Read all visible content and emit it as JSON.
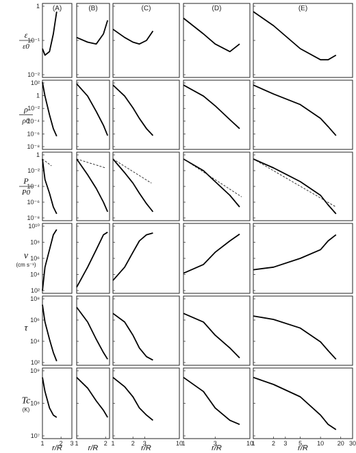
{
  "chart_data": {
    "type": "line",
    "columns": [
      "(A)",
      "(B)",
      "(C)",
      "(D)",
      "(E)"
    ],
    "x_axes": [
      {
        "ticks": [
          1,
          2,
          3
        ],
        "xlabel": "r/R"
      },
      {
        "ticks": [
          1,
          2
        ],
        "xlabel": "r/R"
      },
      {
        "ticks": [
          1,
          2,
          3,
          10
        ],
        "xlabel": "r/R"
      },
      {
        "ticks": [
          1,
          3,
          10
        ],
        "xlabel": "r/R"
      },
      {
        "ticks": [
          1,
          2,
          3,
          5,
          10,
          20,
          30
        ],
        "xlabel": "r/R"
      }
    ],
    "rows": [
      {
        "label": "ε / ε0",
        "label_top": "ε",
        "label_bottom": "ε0",
        "unit": "",
        "scale": "log",
        "ylim": [
          0.01,
          1
        ],
        "ytick_labels": [
          "1",
          "10⁻¹",
          "10⁻²"
        ],
        "series": [
          {
            "x": [
              1.0,
              1.1,
              1.3,
              1.5,
              1.7
            ],
            "y": [
              0.06,
              0.04,
              0.05,
              0.15,
              0.6
            ]
          },
          {
            "x": [
              1.0,
              1.3,
              1.6,
              1.9,
              2.1
            ],
            "y": [
              0.12,
              0.09,
              0.08,
              0.15,
              0.35
            ]
          },
          {
            "x": [
              1.0,
              1.5,
              2.0,
              2.5,
              3.2,
              4.0
            ],
            "y": [
              0.2,
              0.12,
              0.09,
              0.08,
              0.1,
              0.18
            ]
          },
          {
            "x": [
              1.0,
              2.0,
              3.0,
              5.0,
              7.0
            ],
            "y": [
              0.4,
              0.15,
              0.08,
              0.05,
              0.08
            ]
          },
          {
            "x": [
              1.0,
              2.0,
              5.0,
              10.0,
              13.0,
              17.0
            ],
            "y": [
              0.6,
              0.25,
              0.06,
              0.03,
              0.03,
              0.04
            ]
          }
        ]
      },
      {
        "label": "ρ / ρ0",
        "label_top": "ρ",
        "label_bottom": "ρ0",
        "unit": "",
        "scale": "log",
        "ylim": [
          1e-08,
          100
        ],
        "ytick_labels": [
          "10²",
          "1",
          "10⁻²",
          "10⁻⁴",
          "10⁻⁶",
          "10⁻⁸"
        ],
        "series": [
          {
            "x": [
              1.0,
              1.1,
              1.3,
              1.5,
              1.7
            ],
            "y": [
              50,
              0.5,
              0.001,
              1e-05,
              8e-07
            ]
          },
          {
            "x": [
              1.0,
              1.3,
              1.6,
              1.9,
              2.1
            ],
            "y": [
              30,
              0.5,
              0.003,
              3e-05,
              1e-06
            ]
          },
          {
            "x": [
              1.0,
              1.5,
              2.0,
              2.5,
              3.2,
              4.0
            ],
            "y": [
              20,
              0.5,
              0.01,
              0.0003,
              1e-05,
              1e-06
            ]
          },
          {
            "x": [
              1.0,
              2.0,
              3.0,
              5.0,
              7.0
            ],
            "y": [
              20,
              0.5,
              0.02,
              0.0002,
              1e-05
            ]
          },
          {
            "x": [
              1.0,
              2.0,
              5.0,
              10.0,
              13.0,
              17.0
            ],
            "y": [
              20,
              1,
              0.03,
              0.0003,
              2e-05,
              1e-06
            ]
          }
        ]
      },
      {
        "label": "P / P0",
        "label_top": "P",
        "label_bottom": "P0",
        "unit": "",
        "scale": "log",
        "ylim": [
          1e-09,
          10
        ],
        "ytick_labels": [
          "1",
          "10⁻²",
          "10⁻⁴",
          "10⁻⁶",
          "10⁻⁸"
        ],
        "series": [
          {
            "x": [
              1.0,
              1.1,
              1.3,
              1.5,
              1.7
            ],
            "y": [
              1,
              0.001,
              1e-05,
              1e-07,
              1e-08
            ]
          },
          {
            "x": [
              1.0,
              1.3,
              1.6,
              1.9,
              2.1
            ],
            "y": [
              1,
              0.005,
              5e-05,
              5e-07,
              2e-08
            ]
          },
          {
            "x": [
              1.0,
              1.5,
              2.0,
              2.5,
              3.2,
              4.0
            ],
            "y": [
              1,
              0.01,
              0.0003,
              1e-05,
              3e-07,
              2e-08
            ]
          },
          {
            "x": [
              1.0,
              2.0,
              3.0,
              5.0,
              7.0
            ],
            "y": [
              1,
              0.02,
              0.0005,
              5e-06,
              1e-07
            ]
          },
          {
            "x": [
              1.0,
              2.0,
              5.0,
              10.0,
              13.0,
              17.0
            ],
            "y": [
              1,
              0.05,
              0.0005,
              5e-06,
              2e-07,
              1e-08
            ]
          }
        ],
        "dashed_series": [
          {
            "x": [
              1.0,
              1.4
            ],
            "y": [
              1,
              0.1
            ]
          },
          {
            "x": [
              1.0,
              2.0
            ],
            "y": [
              1,
              0.05
            ]
          },
          {
            "x": [
              1.0,
              3.8
            ],
            "y": [
              1,
              0.0003
            ]
          },
          {
            "x": [
              1.0,
              7.5
            ],
            "y": [
              1,
              3e-06
            ]
          },
          {
            "x": [
              1.0,
              17.0
            ],
            "y": [
              1,
              1e-07
            ]
          }
        ]
      },
      {
        "label": "v",
        "label_top": "v",
        "label_bottom": "",
        "unit": "(cm s⁻¹)",
        "scale": "log",
        "ylim": [
          100,
          10000000000.0
        ],
        "ytick_labels": [
          "10¹⁰",
          "10⁸",
          "10⁶",
          "10⁴",
          "10²"
        ],
        "series": [
          {
            "x": [
              1.0,
              1.1,
              1.3,
              1.5,
              1.7
            ],
            "y": [
              200,
              100000,
              10000000,
              500000000,
              2000000000
            ]
          },
          {
            "x": [
              1.0,
              1.3,
              1.6,
              1.9,
              2.1
            ],
            "y": [
              500,
              100000,
              10000000,
              500000000,
              1000000000
            ]
          },
          {
            "x": [
              1.0,
              1.5,
              2.0,
              2.5,
              3.2,
              4.0
            ],
            "y": [
              3000,
              100000,
              5000000,
              100000000,
              500000000,
              800000000
            ]
          },
          {
            "x": [
              1.0,
              2.0,
              3.0,
              5.0,
              7.0
            ],
            "y": [
              20000,
              200000,
              5000000,
              100000000,
              600000000
            ]
          },
          {
            "x": [
              1.0,
              2.0,
              5.0,
              10.0,
              13.0,
              17.0
            ],
            "y": [
              50000,
              100000,
              1000000,
              10000000,
              100000000,
              500000000
            ]
          }
        ]
      },
      {
        "label": "τ",
        "label_top": "τ",
        "label_bottom": "",
        "unit": "",
        "scale": "log",
        "ylim": [
          10,
          1000000000.0
        ],
        "ytick_labels": [
          "10⁸",
          "10⁶",
          "10⁴",
          "10²"
        ],
        "series": [
          {
            "x": [
              1.0,
              1.1,
              1.3,
              1.5,
              1.7
            ],
            "y": [
              100000000,
              1000000,
              10000,
              300,
              30
            ]
          },
          {
            "x": [
              1.0,
              1.3,
              1.6,
              1.9,
              2.1
            ],
            "y": [
              50000000,
              1000000,
              10000,
              300,
              50
            ]
          },
          {
            "x": [
              1.0,
              1.5,
              2.0,
              2.5,
              3.2,
              4.0
            ],
            "y": [
              10000000,
              1000000,
              30000,
              1000,
              100,
              40
            ]
          },
          {
            "x": [
              1.0,
              2.0,
              3.0,
              5.0,
              7.0
            ],
            "y": [
              10000000,
              1000000,
              30000,
              1000,
              70
            ]
          },
          {
            "x": [
              1.0,
              2.0,
              5.0,
              10.0,
              13.0,
              17.0
            ],
            "y": [
              5000000,
              2000000,
              200000,
              5000,
              500,
              50
            ]
          }
        ]
      },
      {
        "label": "Tc (K)",
        "label_top": "Tc",
        "label_bottom": "",
        "unit": "(K)",
        "scale": "log",
        "ylim": [
          5000000,
          5000000000
        ],
        "ytick_labels": [
          "10⁹",
          "10⁸",
          "10⁷"
        ],
        "series": [
          {
            "x": [
              1.0,
              1.1,
              1.3,
              1.5,
              1.7
            ],
            "y": [
              2000000000,
              500000000,
              100000000,
              50000000,
              40000000
            ]
          },
          {
            "x": [
              1.0,
              1.3,
              1.6,
              1.9,
              2.1
            ],
            "y": [
              2000000000,
              700000000,
              200000000,
              80000000,
              40000000
            ]
          },
          {
            "x": [
              1.0,
              1.5,
              2.0,
              2.5,
              3.2,
              4.0
            ],
            "y": [
              2000000000,
              800000000,
              300000000,
              100000000,
              50000000,
              30000000
            ]
          },
          {
            "x": [
              1.0,
              2.0,
              3.0,
              5.0,
              7.0
            ],
            "y": [
              2000000000,
              500000000,
              100000000,
              30000000,
              20000000
            ]
          },
          {
            "x": [
              1.0,
              2.0,
              5.0,
              10.0,
              13.0,
              17.0
            ],
            "y": [
              2000000000,
              1000000000,
              300000000,
              50000000,
              20000000,
              12000000
            ]
          }
        ]
      }
    ]
  }
}
